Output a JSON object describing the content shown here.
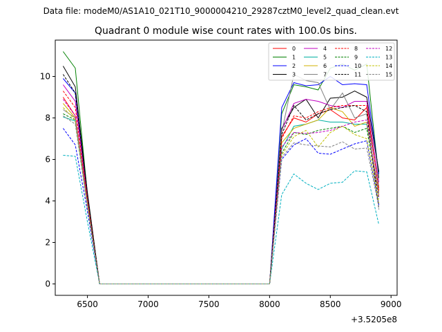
{
  "figure": {
    "suptitle": "Data file: modeM0/AS1A10_021T10_9000004210_29287cztM0_level2_quad_clean.evt",
    "title": "Quadrant 0 module wise count rates with 100.0s bins.",
    "offset_label": "+3.5205e8"
  },
  "chart_data": {
    "type": "line",
    "x": [
      6300,
      6400,
      6500,
      6600,
      6700,
      6800,
      6900,
      7000,
      7100,
      7200,
      7300,
      7400,
      7500,
      7600,
      7700,
      7800,
      7900,
      8000,
      8100,
      8200,
      8300,
      8400,
      8500,
      8600,
      8700,
      8800,
      8900
    ],
    "xlim": [
      6235,
      9050
    ],
    "ylim": [
      -0.55,
      11.75
    ],
    "xticks": [
      6500,
      7000,
      7500,
      8000,
      8500,
      9000
    ],
    "yticks": [
      0,
      2,
      4,
      6,
      8,
      10
    ],
    "xtick_labels": [
      "6500",
      "7000",
      "7500",
      "8000",
      "8500",
      "9000"
    ],
    "ytick_labels": [
      "0",
      "2",
      "4",
      "6",
      "8",
      "10"
    ],
    "grid": false,
    "legend_position": "top-right",
    "series": [
      {
        "name": "0",
        "color": "#ff0000",
        "dash": "solid",
        "values": [
          9.0,
          8.1,
          4.0,
          0,
          0,
          0,
          0,
          0,
          0,
          0,
          0,
          0,
          0,
          0,
          0,
          0,
          0,
          0,
          7.1,
          8.0,
          7.8,
          8.2,
          8.4,
          8.0,
          7.9,
          8.5,
          4.6
        ]
      },
      {
        "name": "1",
        "color": "#008000",
        "dash": "solid",
        "values": [
          11.2,
          10.4,
          4.3,
          0,
          0,
          0,
          0,
          0,
          0,
          0,
          0,
          0,
          0,
          0,
          0,
          0,
          0,
          0,
          8.2,
          9.6,
          9.5,
          9.35,
          10.4,
          10.6,
          10.3,
          10.6,
          5.1
        ]
      },
      {
        "name": "2",
        "color": "#0000ff",
        "dash": "solid",
        "values": [
          9.9,
          9.2,
          4.2,
          0,
          0,
          0,
          0,
          0,
          0,
          0,
          0,
          0,
          0,
          0,
          0,
          0,
          0,
          0,
          8.5,
          9.7,
          9.55,
          9.6,
          10.0,
          9.6,
          9.65,
          9.6,
          5.3
        ]
      },
      {
        "name": "3",
        "color": "#000000",
        "dash": "solid",
        "values": [
          10.5,
          9.5,
          4.4,
          0,
          0,
          0,
          0,
          0,
          0,
          0,
          0,
          0,
          0,
          0,
          0,
          0,
          0,
          0,
          7.5,
          8.5,
          8.9,
          8.0,
          8.95,
          9.0,
          9.3,
          9.0,
          5.4
        ]
      },
      {
        "name": "4",
        "color": "#c000c0",
        "dash": "solid",
        "values": [
          9.6,
          8.8,
          4.1,
          0,
          0,
          0,
          0,
          0,
          0,
          0,
          0,
          0,
          0,
          0,
          0,
          0,
          0,
          0,
          7.4,
          8.7,
          8.9,
          8.8,
          8.6,
          8.5,
          8.8,
          8.8,
          4.9
        ]
      },
      {
        "name": "5",
        "color": "#00b0a0",
        "dash": "solid",
        "values": [
          8.05,
          7.85,
          3.8,
          0,
          0,
          0,
          0,
          0,
          0,
          0,
          0,
          0,
          0,
          0,
          0,
          0,
          0,
          0,
          6.5,
          7.6,
          7.7,
          7.9,
          7.8,
          7.8,
          7.7,
          7.7,
          4.4
        ]
      },
      {
        "name": "6",
        "color": "#d0b000",
        "dash": "solid",
        "values": [
          8.7,
          8.0,
          3.9,
          0,
          0,
          0,
          0,
          0,
          0,
          0,
          0,
          0,
          0,
          0,
          0,
          0,
          0,
          0,
          6.8,
          7.5,
          7.7,
          7.9,
          8.5,
          8.3,
          7.6,
          7.8,
          4.3
        ]
      },
      {
        "name": "7",
        "color": "#808080",
        "dash": "solid",
        "values": [
          8.4,
          8.0,
          4.0,
          0,
          0,
          0,
          0,
          0,
          0,
          0,
          0,
          0,
          0,
          0,
          0,
          0,
          0,
          0,
          7.3,
          10.1,
          9.8,
          9.7,
          8.4,
          9.2,
          8.0,
          8.2,
          4.7
        ]
      },
      {
        "name": "8",
        "color": "#ff0000",
        "dash": "dashed",
        "values": [
          9.3,
          8.5,
          4.1,
          0,
          0,
          0,
          0,
          0,
          0,
          0,
          0,
          0,
          0,
          0,
          0,
          0,
          0,
          0,
          7.0,
          8.1,
          8.0,
          8.3,
          8.5,
          8.6,
          8.6,
          8.6,
          4.5
        ]
      },
      {
        "name": "9",
        "color": "#008000",
        "dash": "dashed",
        "values": [
          8.2,
          7.9,
          3.9,
          0,
          0,
          0,
          0,
          0,
          0,
          0,
          0,
          0,
          0,
          0,
          0,
          0,
          0,
          0,
          6.3,
          7.3,
          7.2,
          7.4,
          7.5,
          7.6,
          7.3,
          7.5,
          4.1
        ]
      },
      {
        "name": "10",
        "color": "#0000ff",
        "dash": "dashed",
        "values": [
          7.5,
          6.7,
          3.5,
          0,
          0,
          0,
          0,
          0,
          0,
          0,
          0,
          0,
          0,
          0,
          0,
          0,
          0,
          0,
          6.0,
          6.7,
          7.0,
          6.3,
          6.25,
          6.5,
          6.75,
          6.9,
          3.8
        ]
      },
      {
        "name": "11",
        "color": "#000000",
        "dash": "dashed",
        "values": [
          10.1,
          9.2,
          4.3,
          0,
          0,
          0,
          0,
          0,
          0,
          0,
          0,
          0,
          0,
          0,
          0,
          0,
          0,
          0,
          7.2,
          8.6,
          7.9,
          8.2,
          8.4,
          8.5,
          8.6,
          8.3,
          3.6
        ]
      },
      {
        "name": "12",
        "color": "#c000c0",
        "dash": "dashed",
        "values": [
          8.9,
          8.1,
          3.9,
          0,
          0,
          0,
          0,
          0,
          0,
          0,
          0,
          0,
          0,
          0,
          0,
          0,
          0,
          0,
          6.6,
          7.3,
          7.25,
          7.3,
          7.4,
          7.6,
          7.8,
          7.9,
          4.2
        ]
      },
      {
        "name": "13",
        "color": "#00b0c0",
        "dash": "dashed",
        "values": [
          6.2,
          6.15,
          3.0,
          0,
          0,
          0,
          0,
          0,
          0,
          0,
          0,
          0,
          0,
          0,
          0,
          0,
          0,
          0,
          4.3,
          5.3,
          4.85,
          4.55,
          4.85,
          4.9,
          5.45,
          5.4,
          2.85
        ]
      },
      {
        "name": "14",
        "color": "#c0c000",
        "dash": "dashed",
        "values": [
          8.5,
          7.9,
          3.8,
          0,
          0,
          0,
          0,
          0,
          0,
          0,
          0,
          0,
          0,
          0,
          0,
          0,
          0,
          0,
          6.2,
          7.1,
          7.4,
          6.6,
          7.3,
          7.6,
          7.2,
          7.0,
          3.9
        ]
      },
      {
        "name": "15",
        "color": "#808080",
        "dash": "dashed",
        "values": [
          8.1,
          7.7,
          3.7,
          0,
          0,
          0,
          0,
          0,
          0,
          0,
          0,
          0,
          0,
          0,
          0,
          0,
          0,
          0,
          6.1,
          6.8,
          6.7,
          6.65,
          6.6,
          6.85,
          6.5,
          6.55,
          3.7
        ]
      }
    ]
  }
}
